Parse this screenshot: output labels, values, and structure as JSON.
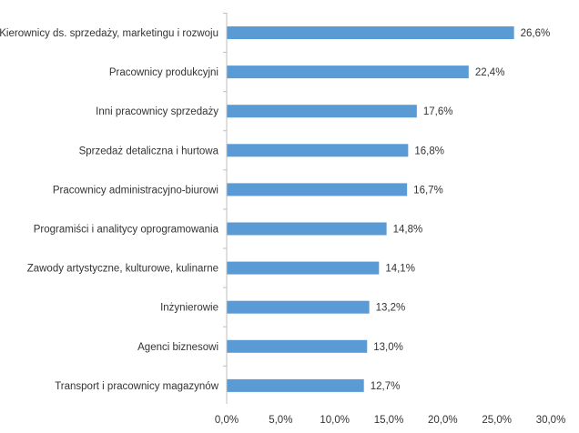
{
  "chart_data": {
    "type": "bar",
    "orientation": "horizontal",
    "title": "",
    "xlabel": "",
    "ylabel": "",
    "categories": [
      "Kierownicy ds. sprzedaży, marketingu i rozwoju",
      "Pracownicy produkcyjni",
      "Inni pracownicy sprzedaży",
      "Sprzedaż detaliczna i hurtowa",
      "Pracownicy administracyjno-biurowi",
      "Programiści i analitycy oprogramowania",
      "Zawody artystyczne, kulturowe, kulinarne",
      "Inżynierowie",
      "Agenci biznesowi",
      "Transport i pracownicy magazynów"
    ],
    "values": [
      26.6,
      22.4,
      17.6,
      16.8,
      16.7,
      14.8,
      14.1,
      13.2,
      13.0,
      12.7
    ],
    "value_labels": [
      "26,6%",
      "22,4%",
      "17,6%",
      "16,8%",
      "16,7%",
      "14,8%",
      "14,1%",
      "13,2%",
      "13,0%",
      "12,7%"
    ],
    "xlim": [
      0,
      30
    ],
    "xticks": [
      0,
      5,
      10,
      15,
      20,
      25,
      30
    ],
    "xtick_labels": [
      "0,0%",
      "5,0%",
      "10,0%",
      "15,0%",
      "20,0%",
      "25,0%",
      "30,0%"
    ],
    "grid": false,
    "legend": "none",
    "bar_color": "#5B9BD5"
  }
}
